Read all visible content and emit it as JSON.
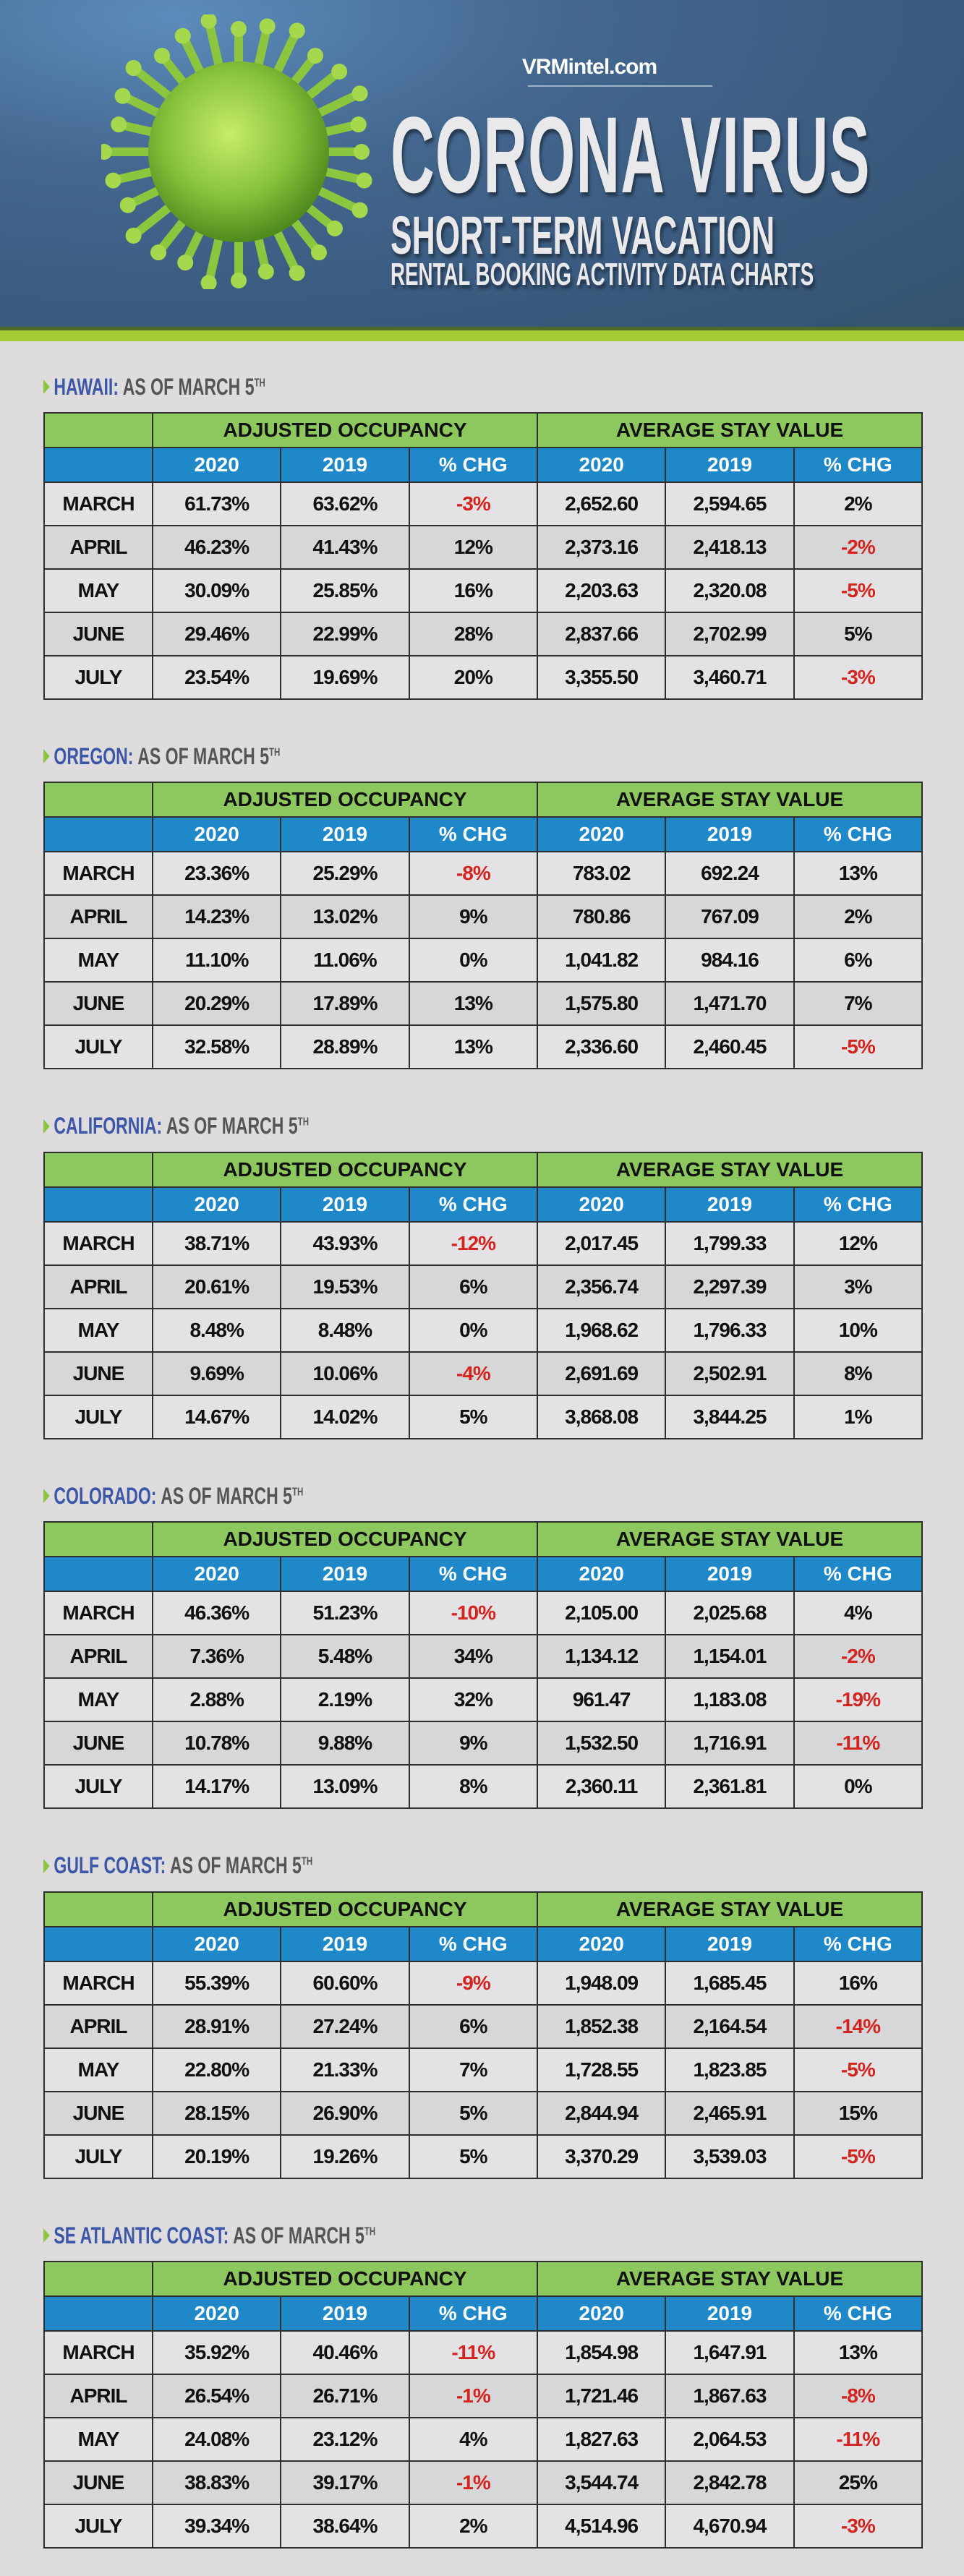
{
  "header": {
    "site": "VRMintel.com",
    "title": "CORONA VIRUS",
    "subtitle": "SHORT-TERM VACATION",
    "tagline": "RENTAL BOOKING ACTIVITY DATA CHARTS",
    "image": "coronavirus-illustration"
  },
  "colors": {
    "group_header": "#8dc85f",
    "sub_header": "#1e88c8",
    "negative": "#d3241f",
    "region_title": "#3c57a7",
    "accent_stripe": "#a6cb37"
  },
  "columns": {
    "group1": "ADJUSTED OCCUPANCY",
    "group2": "AVERAGE STAY VALUE",
    "sub": [
      "2020",
      "2019",
      "% CHG",
      "2020",
      "2019",
      "% CHG"
    ]
  },
  "sections": [
    {
      "region": "HAWAII:",
      "asof": "AS OF MARCH 5",
      "sup": "TH",
      "rows": [
        [
          "MARCH",
          "61.73%",
          "63.62%",
          "-3%",
          "2,652.60",
          "2,594.65",
          "2%"
        ],
        [
          "APRIL",
          "46.23%",
          "41.43%",
          "12%",
          "2,373.16",
          "2,418.13",
          "-2%"
        ],
        [
          "MAY",
          "30.09%",
          "25.85%",
          "16%",
          "2,203.63",
          "2,320.08",
          "-5%"
        ],
        [
          "JUNE",
          "29.46%",
          "22.99%",
          "28%",
          "2,837.66",
          "2,702.99",
          "5%"
        ],
        [
          "JULY",
          "23.54%",
          "19.69%",
          "20%",
          "3,355.50",
          "3,460.71",
          "-3%"
        ]
      ]
    },
    {
      "region": "OREGON:",
      "asof": "AS OF MARCH 5",
      "sup": "TH",
      "rows": [
        [
          "MARCH",
          "23.36%",
          "25.29%",
          "-8%",
          "783.02",
          "692.24",
          "13%"
        ],
        [
          "APRIL",
          "14.23%",
          "13.02%",
          "9%",
          "780.86",
          "767.09",
          "2%"
        ],
        [
          "MAY",
          "11.10%",
          "11.06%",
          "0%",
          "1,041.82",
          "984.16",
          "6%"
        ],
        [
          "JUNE",
          "20.29%",
          "17.89%",
          "13%",
          "1,575.80",
          "1,471.70",
          "7%"
        ],
        [
          "JULY",
          "32.58%",
          "28.89%",
          "13%",
          "2,336.60",
          "2,460.45",
          "-5%"
        ]
      ]
    },
    {
      "region": "CALIFORNIA:",
      "asof": "AS OF MARCH 5",
      "sup": "TH",
      "rows": [
        [
          "MARCH",
          "38.71%",
          "43.93%",
          "-12%",
          "2,017.45",
          "1,799.33",
          "12%"
        ],
        [
          "APRIL",
          "20.61%",
          "19.53%",
          "6%",
          "2,356.74",
          "2,297.39",
          "3%"
        ],
        [
          "MAY",
          "8.48%",
          "8.48%",
          "0%",
          "1,968.62",
          "1,796.33",
          "10%"
        ],
        [
          "JUNE",
          "9.69%",
          "10.06%",
          "-4%",
          "2,691.69",
          "2,502.91",
          "8%"
        ],
        [
          "JULY",
          "14.67%",
          "14.02%",
          "5%",
          "3,868.08",
          "3,844.25",
          "1%"
        ]
      ]
    },
    {
      "region": "COLORADO:",
      "asof": "AS OF MARCH 5",
      "sup": "TH",
      "rows": [
        [
          "MARCH",
          "46.36%",
          "51.23%",
          "-10%",
          "2,105.00",
          "2,025.68",
          "4%"
        ],
        [
          "APRIL",
          "7.36%",
          "5.48%",
          "34%",
          "1,134.12",
          "1,154.01",
          "-2%"
        ],
        [
          "MAY",
          "2.88%",
          "2.19%",
          "32%",
          "961.47",
          "1,183.08",
          "-19%"
        ],
        [
          "JUNE",
          "10.78%",
          "9.88%",
          "9%",
          "1,532.50",
          "1,716.91",
          "-11%"
        ],
        [
          "JULY",
          "14.17%",
          "13.09%",
          "8%",
          "2,360.11",
          "2,361.81",
          "0%"
        ]
      ]
    },
    {
      "region": "GULF COAST:",
      "asof": "AS OF MARCH 5",
      "sup": "TH",
      "rows": [
        [
          "MARCH",
          "55.39%",
          "60.60%",
          "-9%",
          "1,948.09",
          "1,685.45",
          "16%"
        ],
        [
          "APRIL",
          "28.91%",
          "27.24%",
          "6%",
          "1,852.38",
          "2,164.54",
          "-14%"
        ],
        [
          "MAY",
          "22.80%",
          "21.33%",
          "7%",
          "1,728.55",
          "1,823.85",
          "-5%"
        ],
        [
          "JUNE",
          "28.15%",
          "26.90%",
          "5%",
          "2,844.94",
          "2,465.91",
          "15%"
        ],
        [
          "JULY",
          "20.19%",
          "19.26%",
          "5%",
          "3,370.29",
          "3,539.03",
          "-5%"
        ]
      ]
    },
    {
      "region": "SE ATLANTIC COAST:",
      "asof": "AS OF MARCH 5",
      "sup": "TH",
      "rows": [
        [
          "MARCH",
          "35.92%",
          "40.46%",
          "-11%",
          "1,854.98",
          "1,647.91",
          "13%"
        ],
        [
          "APRIL",
          "26.54%",
          "26.71%",
          "-1%",
          "1,721.46",
          "1,867.63",
          "-8%"
        ],
        [
          "MAY",
          "24.08%",
          "23.12%",
          "4%",
          "1,827.63",
          "2,064.53",
          "-11%"
        ],
        [
          "JUNE",
          "38.83%",
          "39.17%",
          "-1%",
          "3,544.74",
          "2,842.78",
          "25%"
        ],
        [
          "JULY",
          "39.34%",
          "38.64%",
          "2%",
          "4,514.96",
          "4,670.94",
          "-3%"
        ]
      ]
    }
  ]
}
